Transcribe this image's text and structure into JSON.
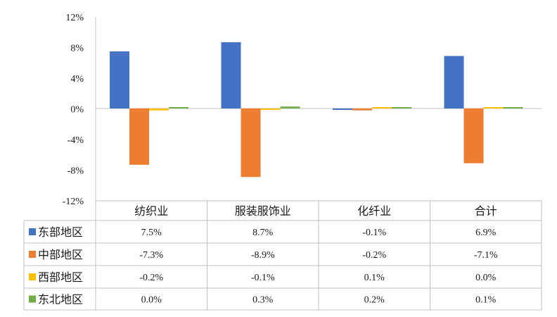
{
  "chart_data": {
    "type": "bar",
    "categories": [
      "纺织业",
      "服装服饰业",
      "化纤业",
      "合计"
    ],
    "series": [
      {
        "name": "东部地区",
        "color": "#4472C4",
        "values": [
          7.5,
          8.7,
          -0.1,
          6.9
        ],
        "labels": [
          "7.5%",
          "8.7%",
          "-0.1%",
          "6.9%"
        ]
      },
      {
        "name": "中部地区",
        "color": "#ED7D31",
        "values": [
          -7.3,
          -8.9,
          -0.2,
          -7.1
        ],
        "labels": [
          "-7.3%",
          "-8.9%",
          "-0.2%",
          "-7.1%"
        ]
      },
      {
        "name": "西部地区",
        "color": "#FFC000",
        "values": [
          -0.2,
          -0.1,
          0.1,
          0.0
        ],
        "labels": [
          "-0.2%",
          "-0.1%",
          "0.1%",
          "0.0%"
        ]
      },
      {
        "name": "东北地区",
        "color": "#70AD47",
        "values": [
          0.0,
          0.3,
          0.2,
          0.1
        ],
        "labels": [
          "0.0%",
          "0.3%",
          "0.2%",
          "0.1%"
        ]
      }
    ],
    "yticks": [
      "12%",
      "8%",
      "4%",
      "0%",
      "-4%",
      "-8%",
      "-12%"
    ],
    "ylim": [
      -12,
      12
    ],
    "grid": false,
    "legend": "data-table",
    "title": "",
    "xlabel": "",
    "ylabel": ""
  }
}
